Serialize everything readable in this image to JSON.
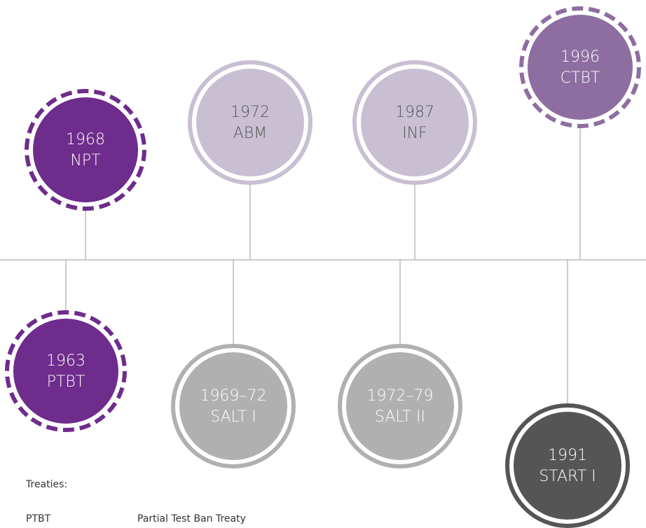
{
  "nodes": [
    {
      "year": "1968",
      "label": "NPT"
    },
    {
      "year": "1972",
      "label": "ABM"
    },
    {
      "year": "1987",
      "label": "INF"
    },
    {
      "year": "1996",
      "label": "CTBT"
    },
    {
      "year": "1963",
      "label": "PTBT"
    },
    {
      "year": "1969–72",
      "label": "SALT I"
    },
    {
      "year": "1972–79",
      "label": "SALT II"
    },
    {
      "year": "1991",
      "label": "START I"
    }
  ],
  "legend": {
    "title": "Treaties:",
    "entries": [
      {
        "abbr": "PTBT",
        "name": "Partial Test Ban Treaty"
      }
    ]
  }
}
